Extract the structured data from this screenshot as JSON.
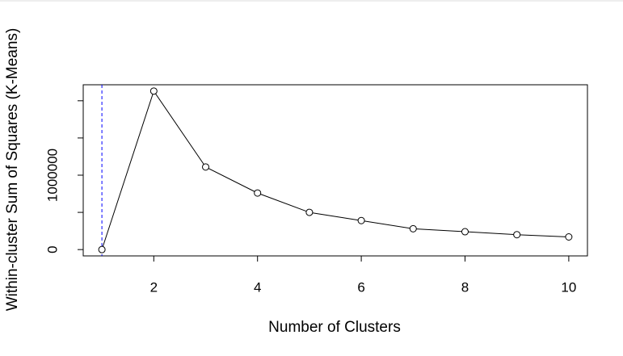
{
  "chart_data": {
    "type": "line",
    "xlabel": "Number of Clusters",
    "ylabel": "Within-cluster Sum of Squares (K-Means)",
    "x": [
      1,
      2,
      3,
      4,
      5,
      6,
      7,
      8,
      9,
      10
    ],
    "series": [
      {
        "color": "#000000",
        "values": [
          0,
          2130000,
          1110000,
          760000,
          500000,
          390000,
          280000,
          240000,
          200000,
          170000
        ]
      }
    ],
    "xlim": [
      0.64,
      10.36
    ],
    "ylim": [
      -85000,
      2215000
    ],
    "xticks": [
      2,
      4,
      6,
      8,
      10
    ],
    "yticks": [
      0,
      {
        "value": 500000,
        "label": null
      },
      1000000,
      {
        "value": 1500000,
        "label": null
      },
      {
        "value": 2000000,
        "label": null
      }
    ],
    "vline": {
      "value": 1,
      "color": "#0000ff"
    }
  }
}
